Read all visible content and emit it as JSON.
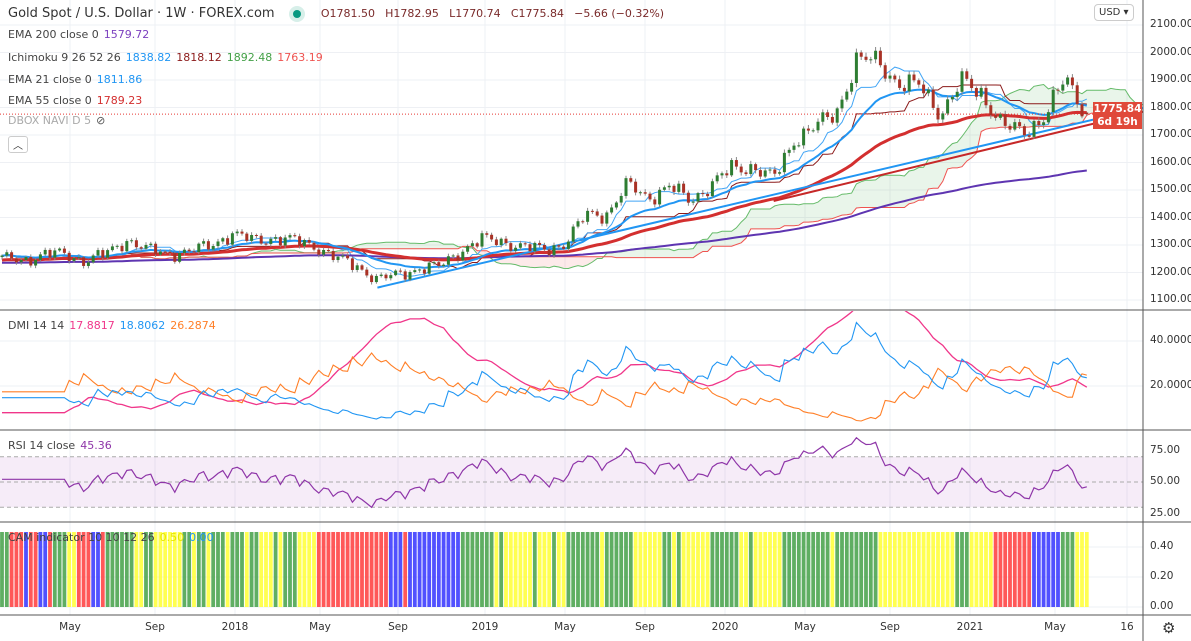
{
  "header": {
    "title": "Gold Spot / U.S. Dollar · 1W · FOREX.com",
    "open": "O1781.50",
    "high": "H1782.95",
    "low": "L1770.74",
    "close": "C1775.84",
    "change": "−5.66 (−0.32%)"
  },
  "indicators": {
    "ema200": {
      "label": "EMA 200 close 0",
      "value": "1579.72",
      "color": "#7b3fbf"
    },
    "ichimoku": {
      "label": "Ichimoku 9 26 52 26",
      "v1": "1838.82",
      "v2": "1818.12",
      "v3": "1892.48",
      "v4": "1763.19"
    },
    "ema21": {
      "label": "EMA 21 close 0",
      "value": "1811.86",
      "color": "#2196f3"
    },
    "ema55": {
      "label": "EMA 55 close 0",
      "value": "1789.23",
      "color": "#d32f2f"
    },
    "dbox": {
      "label": "DBOX NAVI D 5"
    },
    "dmi": {
      "label": "DMI 14 14",
      "v1": "17.8817",
      "v2": "18.8062",
      "v3": "26.2874"
    },
    "rsi": {
      "label": "RSI 14 close",
      "value": "45.36"
    },
    "cam": {
      "label": "CAM indicator 10 10 12 26",
      "v1": "0.50",
      "v2": "0.00"
    }
  },
  "currency_button": "USD ▾",
  "price_label": {
    "price": "1775.84",
    "countdown": "6d 19h"
  },
  "chart_data": {
    "type": "candlestick",
    "title": "Gold Spot / U.S. Dollar · 1W · FOREX.com",
    "x_ticks": [
      "May",
      "Sep",
      "2018",
      "May",
      "Sep",
      "2019",
      "May",
      "Sep",
      "2020",
      "May",
      "Sep",
      "2021",
      "May",
      "16"
    ],
    "price_axis": {
      "ticks": [
        "2100.00",
        "2000.00",
        "1900.00",
        "1800.00",
        "1700.00",
        "1600.00",
        "1500.00",
        "1400.00",
        "1300.00",
        "1200.00",
        "1100.00"
      ],
      "ylim": [
        1060,
        2140
      ]
    },
    "monthly_closes": {
      "start": "2017-02",
      "values": [
        1250,
        1245,
        1265,
        1268,
        1242,
        1268,
        1320,
        1280,
        1270,
        1275,
        1300,
        1340,
        1318,
        1325,
        1315,
        1298,
        1252,
        1224,
        1175,
        1192,
        1215,
        1222,
        1280,
        1320,
        1313,
        1292,
        1283,
        1305,
        1410,
        1413,
        1520,
        1472,
        1512,
        1463,
        1517,
        1580,
        1585,
        1540,
        1686,
        1730,
        1780,
        1975,
        1968,
        1886,
        1879,
        1777,
        1895,
        1848,
        1734,
        1708,
        1769,
        1906,
        1775
      ]
    },
    "last_bar": {
      "open": 1781.5,
      "high": 1782.95,
      "low": 1770.74,
      "close": 1775.84
    },
    "trendlines": [
      {
        "color": "#2196f3",
        "from": [
          "2018-08",
          1145
        ],
        "to": [
          "2021-06",
          1750
        ]
      },
      {
        "color": "#c62828",
        "from": [
          "2020-03",
          1460
        ],
        "to": [
          "2021-06",
          1735
        ]
      }
    ],
    "dmi_axis": {
      "ticks": [
        "40.0000",
        "20.0000"
      ]
    },
    "rsi_axis": {
      "ticks": [
        "75.00",
        "50.00",
        "25.00"
      ],
      "band": [
        30,
        70
      ]
    },
    "cam_axis": {
      "ticks": [
        "0.40",
        "0.20",
        "0.00"
      ],
      "bar_value": 0.5
    },
    "colors": {
      "up": "#2e7d32",
      "down": "#a93226",
      "plus_di": "#2196f3",
      "minus_di": "#ff7f27",
      "adx": "#f0368a",
      "rsi": "#8e35a8",
      "cam_green": "#43a047",
      "cam_yellow": "#ffff33",
      "cam_blue": "#3333ff",
      "cam_red": "#ff3b3b"
    }
  }
}
